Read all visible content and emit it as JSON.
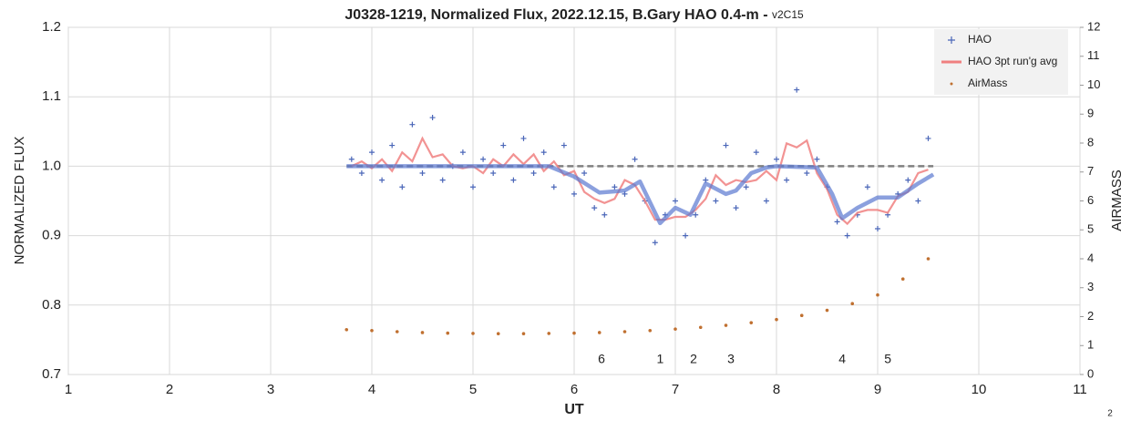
{
  "chart_data": {
    "type": "scatter",
    "title": "J0328-1219, Normalized Flux, 2022.12.15, B.Gary HAO 0.4-m - ",
    "subtitle": "v2C15",
    "xlabel": "UT",
    "ylabel": "NORMALIZED FLUX",
    "y2label": "AIRMASS",
    "xlim": [
      1,
      11
    ],
    "xticks": [
      1,
      2,
      3,
      4,
      5,
      6,
      7,
      8,
      9,
      10,
      11
    ],
    "ylim": [
      0.7,
      1.2
    ],
    "yticks": [
      0.7,
      0.8,
      0.9,
      {
        "value": 1,
        "label": "1.0"
      },
      1.1,
      1.2
    ],
    "y2lim": [
      0,
      12
    ],
    "y2ticks": [
      0,
      1,
      2,
      3,
      4,
      5,
      6,
      7,
      8,
      9,
      10,
      11,
      12
    ],
    "grid": true,
    "legend": "top-right",
    "series": [
      {
        "name": "HAO",
        "color": "#4a66b8",
        "kind": "markers",
        "x": [
          3.8,
          3.9,
          4.0,
          4.1,
          4.2,
          4.3,
          4.4,
          4.5,
          4.6,
          4.7,
          4.8,
          4.9,
          5.0,
          5.1,
          5.2,
          5.3,
          5.4,
          5.5,
          5.6,
          5.7,
          5.8,
          5.9,
          6.0,
          6.1,
          6.2,
          6.3,
          6.4,
          6.5,
          6.6,
          6.7,
          6.8,
          6.9,
          7.0,
          7.1,
          7.2,
          7.3,
          7.4,
          7.5,
          7.6,
          7.7,
          7.8,
          7.9,
          8.0,
          8.1,
          8.2,
          8.3,
          8.4,
          8.5,
          8.6,
          8.7,
          8.8,
          8.9,
          9.0,
          9.1,
          9.2,
          9.3,
          9.4,
          9.5
        ],
        "values": [
          1.01,
          0.99,
          1.02,
          0.98,
          1.03,
          0.97,
          1.06,
          0.99,
          1.07,
          0.98,
          1.0,
          1.02,
          0.97,
          1.01,
          0.99,
          1.03,
          0.98,
          1.04,
          0.99,
          1.02,
          0.97,
          1.03,
          0.96,
          0.99,
          0.94,
          0.93,
          0.97,
          0.96,
          1.01,
          0.95,
          0.89,
          0.93,
          0.95,
          0.9,
          0.93,
          0.98,
          0.95,
          1.03,
          0.94,
          0.97,
          1.02,
          0.95,
          1.01,
          0.98,
          1.11,
          0.99,
          1.01,
          0.97,
          0.92,
          0.9,
          0.93,
          0.97,
          0.91,
          0.93,
          0.96,
          0.98,
          0.95,
          1.04
        ]
      },
      {
        "name": "HAO 3pt run'g avg",
        "color": "#f08080",
        "kind": "line",
        "x": [
          3.8,
          3.9,
          4.0,
          4.1,
          4.2,
          4.3,
          4.4,
          4.5,
          4.6,
          4.7,
          4.8,
          4.9,
          5.0,
          5.1,
          5.2,
          5.3,
          5.4,
          5.5,
          5.6,
          5.7,
          5.8,
          5.9,
          6.0,
          6.1,
          6.2,
          6.3,
          6.4,
          6.5,
          6.6,
          6.7,
          6.8,
          6.9,
          7.0,
          7.1,
          7.2,
          7.3,
          7.4,
          7.5,
          7.6,
          7.7,
          7.8,
          7.9,
          8.0,
          8.1,
          8.2,
          8.3,
          8.4,
          8.5,
          8.6,
          8.7,
          8.8,
          8.9,
          9.0,
          9.1,
          9.2,
          9.3,
          9.4,
          9.5
        ],
        "values": [
          1.0,
          1.007,
          0.997,
          1.01,
          0.993,
          1.02,
          1.007,
          1.04,
          1.013,
          1.017,
          1.0,
          0.997,
          1.0,
          0.99,
          1.01,
          1.0,
          1.017,
          1.003,
          1.017,
          0.993,
          1.007,
          0.987,
          0.993,
          0.963,
          0.953,
          0.947,
          0.953,
          0.98,
          0.973,
          0.95,
          0.923,
          0.923,
          0.927,
          0.927,
          0.937,
          0.953,
          0.987,
          0.973,
          0.98,
          0.977,
          0.98,
          0.993,
          0.98,
          1.033,
          1.027,
          1.037,
          0.99,
          0.967,
          0.93,
          0.917,
          0.933,
          0.937,
          0.937,
          0.933,
          0.957,
          0.963,
          0.99,
          0.995
        ]
      },
      {
        "name": "AirMass",
        "color": "#c07030",
        "kind": "dots",
        "axis": "y2",
        "x": [
          3.75,
          4.0,
          4.25,
          4.5,
          4.75,
          5.0,
          5.25,
          5.5,
          5.75,
          6.0,
          6.25,
          6.5,
          6.75,
          7.0,
          7.25,
          7.5,
          7.75,
          8.0,
          8.25,
          8.5,
          8.75,
          9.0,
          9.25,
          9.5
        ],
        "values": [
          1.55,
          1.52,
          1.48,
          1.45,
          1.43,
          1.42,
          1.41,
          1.41,
          1.42,
          1.43,
          1.45,
          1.48,
          1.52,
          1.57,
          1.63,
          1.7,
          1.79,
          1.9,
          2.04,
          2.22,
          2.45,
          2.75,
          3.3,
          4.0
        ]
      },
      {
        "color": "#5a78d0",
        "kind": "thick-line",
        "x": [
          3.75,
          4.5,
          5.25,
          5.75,
          6.0,
          6.25,
          6.5,
          6.65,
          6.85,
          7.0,
          7.15,
          7.3,
          7.5,
          7.6,
          7.75,
          7.9,
          8.0,
          8.4,
          8.55,
          8.65,
          8.8,
          9.0,
          9.2,
          9.4,
          9.55
        ],
        "values": [
          1.0,
          1.0,
          1.0,
          1.0,
          0.985,
          0.962,
          0.965,
          0.978,
          0.918,
          0.94,
          0.93,
          0.975,
          0.96,
          0.965,
          0.99,
          0.998,
          1.0,
          0.998,
          0.96,
          0.925,
          0.94,
          0.955,
          0.955,
          0.975,
          0.988
        ]
      },
      {
        "color": "#808080",
        "kind": "dashed-line",
        "x": [
          3.75,
          9.55
        ],
        "values": [
          1.0,
          1.0
        ]
      }
    ],
    "annotations": [
      {
        "text": "6",
        "x": 6.27
      },
      {
        "text": "1",
        "x": 6.85
      },
      {
        "text": "2",
        "x": 7.18
      },
      {
        "text": "3",
        "x": 7.55
      },
      {
        "text": "4",
        "x": 8.65
      },
      {
        "text": "5",
        "x": 9.1
      }
    ],
    "page_number": "2"
  }
}
